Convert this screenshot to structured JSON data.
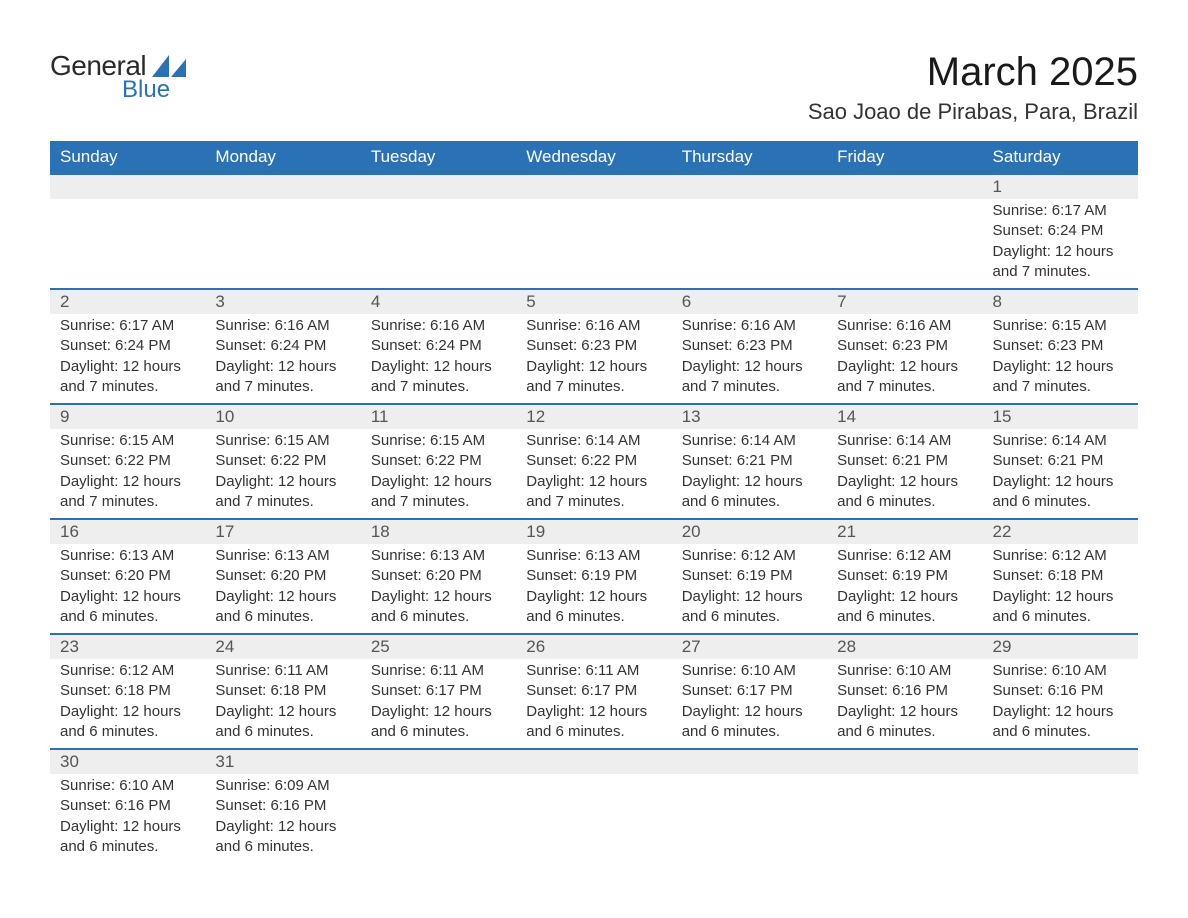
{
  "logo": {
    "general": "General",
    "blue": "Blue",
    "accent": "#2a72b5"
  },
  "title": "March 2025",
  "location": "Sao Joao de Pirabas, Para, Brazil",
  "colors": {
    "header_bg": "#2a72b5",
    "header_text": "#ffffff",
    "daynum_bg": "#eeeeee",
    "row_divider": "#2a72b5",
    "body_text": "#333333",
    "page_bg": "#ffffff"
  },
  "day_headers": [
    "Sunday",
    "Monday",
    "Tuesday",
    "Wednesday",
    "Thursday",
    "Friday",
    "Saturday"
  ],
  "weeks": [
    [
      null,
      null,
      null,
      null,
      null,
      null,
      {
        "n": "1",
        "sr": "Sunrise: 6:17 AM",
        "ss": "Sunset: 6:24 PM",
        "dl": "Daylight: 12 hours and 7 minutes."
      }
    ],
    [
      {
        "n": "2",
        "sr": "Sunrise: 6:17 AM",
        "ss": "Sunset: 6:24 PM",
        "dl": "Daylight: 12 hours and 7 minutes."
      },
      {
        "n": "3",
        "sr": "Sunrise: 6:16 AM",
        "ss": "Sunset: 6:24 PM",
        "dl": "Daylight: 12 hours and 7 minutes."
      },
      {
        "n": "4",
        "sr": "Sunrise: 6:16 AM",
        "ss": "Sunset: 6:24 PM",
        "dl": "Daylight: 12 hours and 7 minutes."
      },
      {
        "n": "5",
        "sr": "Sunrise: 6:16 AM",
        "ss": "Sunset: 6:23 PM",
        "dl": "Daylight: 12 hours and 7 minutes."
      },
      {
        "n": "6",
        "sr": "Sunrise: 6:16 AM",
        "ss": "Sunset: 6:23 PM",
        "dl": "Daylight: 12 hours and 7 minutes."
      },
      {
        "n": "7",
        "sr": "Sunrise: 6:16 AM",
        "ss": "Sunset: 6:23 PM",
        "dl": "Daylight: 12 hours and 7 minutes."
      },
      {
        "n": "8",
        "sr": "Sunrise: 6:15 AM",
        "ss": "Sunset: 6:23 PM",
        "dl": "Daylight: 12 hours and 7 minutes."
      }
    ],
    [
      {
        "n": "9",
        "sr": "Sunrise: 6:15 AM",
        "ss": "Sunset: 6:22 PM",
        "dl": "Daylight: 12 hours and 7 minutes."
      },
      {
        "n": "10",
        "sr": "Sunrise: 6:15 AM",
        "ss": "Sunset: 6:22 PM",
        "dl": "Daylight: 12 hours and 7 minutes."
      },
      {
        "n": "11",
        "sr": "Sunrise: 6:15 AM",
        "ss": "Sunset: 6:22 PM",
        "dl": "Daylight: 12 hours and 7 minutes."
      },
      {
        "n": "12",
        "sr": "Sunrise: 6:14 AM",
        "ss": "Sunset: 6:22 PM",
        "dl": "Daylight: 12 hours and 7 minutes."
      },
      {
        "n": "13",
        "sr": "Sunrise: 6:14 AM",
        "ss": "Sunset: 6:21 PM",
        "dl": "Daylight: 12 hours and 6 minutes."
      },
      {
        "n": "14",
        "sr": "Sunrise: 6:14 AM",
        "ss": "Sunset: 6:21 PM",
        "dl": "Daylight: 12 hours and 6 minutes."
      },
      {
        "n": "15",
        "sr": "Sunrise: 6:14 AM",
        "ss": "Sunset: 6:21 PM",
        "dl": "Daylight: 12 hours and 6 minutes."
      }
    ],
    [
      {
        "n": "16",
        "sr": "Sunrise: 6:13 AM",
        "ss": "Sunset: 6:20 PM",
        "dl": "Daylight: 12 hours and 6 minutes."
      },
      {
        "n": "17",
        "sr": "Sunrise: 6:13 AM",
        "ss": "Sunset: 6:20 PM",
        "dl": "Daylight: 12 hours and 6 minutes."
      },
      {
        "n": "18",
        "sr": "Sunrise: 6:13 AM",
        "ss": "Sunset: 6:20 PM",
        "dl": "Daylight: 12 hours and 6 minutes."
      },
      {
        "n": "19",
        "sr": "Sunrise: 6:13 AM",
        "ss": "Sunset: 6:19 PM",
        "dl": "Daylight: 12 hours and 6 minutes."
      },
      {
        "n": "20",
        "sr": "Sunrise: 6:12 AM",
        "ss": "Sunset: 6:19 PM",
        "dl": "Daylight: 12 hours and 6 minutes."
      },
      {
        "n": "21",
        "sr": "Sunrise: 6:12 AM",
        "ss": "Sunset: 6:19 PM",
        "dl": "Daylight: 12 hours and 6 minutes."
      },
      {
        "n": "22",
        "sr": "Sunrise: 6:12 AM",
        "ss": "Sunset: 6:18 PM",
        "dl": "Daylight: 12 hours and 6 minutes."
      }
    ],
    [
      {
        "n": "23",
        "sr": "Sunrise: 6:12 AM",
        "ss": "Sunset: 6:18 PM",
        "dl": "Daylight: 12 hours and 6 minutes."
      },
      {
        "n": "24",
        "sr": "Sunrise: 6:11 AM",
        "ss": "Sunset: 6:18 PM",
        "dl": "Daylight: 12 hours and 6 minutes."
      },
      {
        "n": "25",
        "sr": "Sunrise: 6:11 AM",
        "ss": "Sunset: 6:17 PM",
        "dl": "Daylight: 12 hours and 6 minutes."
      },
      {
        "n": "26",
        "sr": "Sunrise: 6:11 AM",
        "ss": "Sunset: 6:17 PM",
        "dl": "Daylight: 12 hours and 6 minutes."
      },
      {
        "n": "27",
        "sr": "Sunrise: 6:10 AM",
        "ss": "Sunset: 6:17 PM",
        "dl": "Daylight: 12 hours and 6 minutes."
      },
      {
        "n": "28",
        "sr": "Sunrise: 6:10 AM",
        "ss": "Sunset: 6:16 PM",
        "dl": "Daylight: 12 hours and 6 minutes."
      },
      {
        "n": "29",
        "sr": "Sunrise: 6:10 AM",
        "ss": "Sunset: 6:16 PM",
        "dl": "Daylight: 12 hours and 6 minutes."
      }
    ],
    [
      {
        "n": "30",
        "sr": "Sunrise: 6:10 AM",
        "ss": "Sunset: 6:16 PM",
        "dl": "Daylight: 12 hours and 6 minutes."
      },
      {
        "n": "31",
        "sr": "Sunrise: 6:09 AM",
        "ss": "Sunset: 6:16 PM",
        "dl": "Daylight: 12 hours and 6 minutes."
      },
      null,
      null,
      null,
      null,
      null
    ]
  ]
}
